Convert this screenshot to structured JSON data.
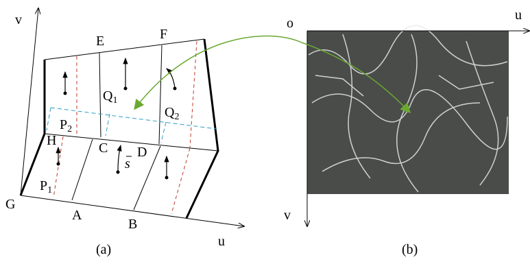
{
  "left_panel": {
    "axis_v": "v",
    "axis_u": "u",
    "caption": "(a)",
    "points": [
      {
        "label": "E"
      },
      {
        "label": "F"
      },
      {
        "label": "Q",
        "sub": "1"
      },
      {
        "label": "Q",
        "sub": "2"
      },
      {
        "label": "P",
        "sub": "2"
      },
      {
        "label": "H"
      },
      {
        "label": "C"
      },
      {
        "label": "D"
      },
      {
        "label": "s"
      },
      {
        "label": "P",
        "sub": "1"
      },
      {
        "label": "G"
      },
      {
        "label": "A"
      },
      {
        "label": "B"
      }
    ]
  },
  "right_panel": {
    "origin": "o",
    "axis_u": "u",
    "axis_v": "v",
    "caption": "(b)"
  }
}
